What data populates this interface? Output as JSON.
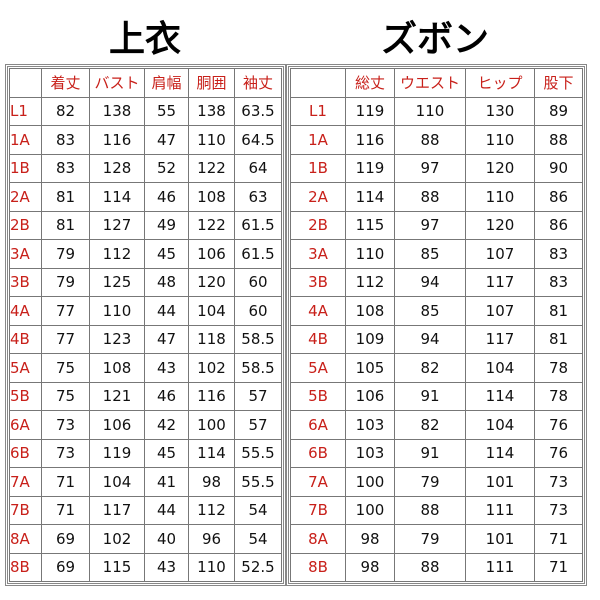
{
  "tops": {
    "title": "上衣",
    "columns": [
      "着丈",
      "バスト",
      "肩幅",
      "胴囲",
      "袖丈"
    ],
    "rows": [
      {
        "label": "L1",
        "values": [
          82,
          138,
          55,
          138,
          63.5
        ]
      },
      {
        "label": "1A",
        "values": [
          83,
          116,
          47,
          110,
          64.5
        ]
      },
      {
        "label": "1B",
        "values": [
          83,
          128,
          52,
          122,
          64
        ]
      },
      {
        "label": "2A",
        "values": [
          81,
          114,
          46,
          108,
          63
        ]
      },
      {
        "label": "2B",
        "values": [
          81,
          127,
          49,
          122,
          61.5
        ]
      },
      {
        "label": "3A",
        "values": [
          79,
          112,
          45,
          106,
          61.5
        ]
      },
      {
        "label": "3B",
        "values": [
          79,
          125,
          48,
          120,
          60
        ]
      },
      {
        "label": "4A",
        "values": [
          77,
          110,
          44,
          104,
          60
        ]
      },
      {
        "label": "4B",
        "values": [
          77,
          123,
          47,
          118,
          58.5
        ]
      },
      {
        "label": "5A",
        "values": [
          75,
          108,
          43,
          102,
          58.5
        ]
      },
      {
        "label": "5B",
        "values": [
          75,
          121,
          46,
          116,
          57
        ]
      },
      {
        "label": "6A",
        "values": [
          73,
          106,
          42,
          100,
          57
        ]
      },
      {
        "label": "6B",
        "values": [
          73,
          119,
          45,
          114,
          55.5
        ]
      },
      {
        "label": "7A",
        "values": [
          71,
          104,
          41,
          98,
          55.5
        ]
      },
      {
        "label": "7B",
        "values": [
          71,
          117,
          44,
          112,
          54
        ]
      },
      {
        "label": "8A",
        "values": [
          69,
          102,
          40,
          96,
          54
        ]
      },
      {
        "label": "8B",
        "values": [
          69,
          115,
          43,
          110,
          52.5
        ]
      }
    ]
  },
  "pants": {
    "title": "ズボン",
    "columns": [
      "総丈",
      "ウエスト",
      "ヒップ",
      "股下"
    ],
    "rows": [
      {
        "label": "L1",
        "values": [
          119,
          110,
          130,
          89
        ]
      },
      {
        "label": "1A",
        "values": [
          116,
          88,
          110,
          88
        ]
      },
      {
        "label": "1B",
        "values": [
          119,
          97,
          120,
          90
        ]
      },
      {
        "label": "2A",
        "values": [
          114,
          88,
          110,
          86
        ]
      },
      {
        "label": "2B",
        "values": [
          115,
          97,
          120,
          86
        ]
      },
      {
        "label": "3A",
        "values": [
          110,
          85,
          107,
          83
        ]
      },
      {
        "label": "3B",
        "values": [
          112,
          94,
          117,
          83
        ]
      },
      {
        "label": "4A",
        "values": [
          108,
          85,
          107,
          81
        ]
      },
      {
        "label": "4B",
        "values": [
          109,
          94,
          117,
          81
        ]
      },
      {
        "label": "5A",
        "values": [
          105,
          82,
          104,
          78
        ]
      },
      {
        "label": "5B",
        "values": [
          106,
          91,
          114,
          78
        ]
      },
      {
        "label": "6A",
        "values": [
          103,
          82,
          104,
          76
        ]
      },
      {
        "label": "6B",
        "values": [
          103,
          91,
          114,
          76
        ]
      },
      {
        "label": "7A",
        "values": [
          100,
          79,
          101,
          73
        ]
      },
      {
        "label": "7B",
        "values": [
          100,
          88,
          111,
          73
        ]
      },
      {
        "label": "8A",
        "values": [
          98,
          79,
          101,
          71
        ]
      },
      {
        "label": "8B",
        "values": [
          98,
          88,
          111,
          71
        ]
      }
    ]
  }
}
